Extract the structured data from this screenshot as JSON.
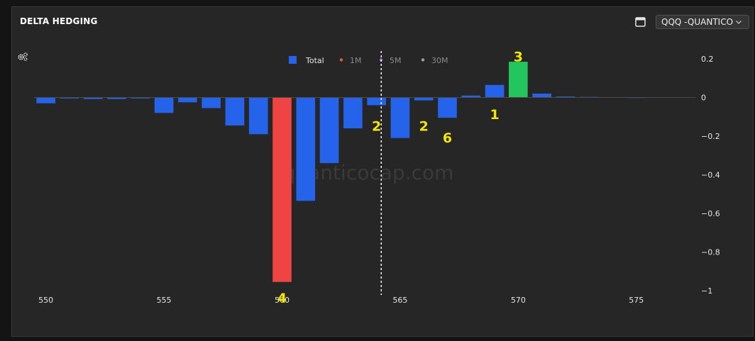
{
  "header": {
    "title": "DELTA HEDGING",
    "layout_icon": "window-layout-icon",
    "ticker_select": {
      "value": "QQQ -QUANTICO",
      "icon": "chevron-down-icon"
    },
    "settings_icon": "settings-gears-icon"
  },
  "watermark": "quanticocap.com",
  "colors": {
    "panel": "#262626",
    "bar_default": "#2563eb",
    "bar_negative_highlight": "#ef4444",
    "bar_positive_highlight": "#22c55e",
    "annotation": "#f5e600",
    "legend_1m": "#d9642b",
    "legend_5m": "#8b5cf6",
    "legend_30m": "#9ca3af"
  },
  "chart_data": {
    "type": "bar",
    "legend": [
      {
        "name": "Total",
        "active": true
      },
      {
        "name": "1M",
        "active": false
      },
      {
        "name": "5M",
        "active": false
      },
      {
        "name": "30M",
        "active": false
      }
    ],
    "series": [
      {
        "name": "Total",
        "x": [
          550,
          551,
          552,
          553,
          554,
          555,
          556,
          557,
          558,
          559,
          560,
          561,
          562,
          563,
          564,
          565,
          566,
          567,
          568,
          569,
          570,
          571,
          572,
          573,
          574,
          575
        ],
        "values": [
          -0.03,
          -0.005,
          -0.008,
          -0.008,
          -0.005,
          -0.08,
          -0.025,
          -0.055,
          -0.145,
          -0.19,
          -0.955,
          -0.535,
          -0.34,
          -0.16,
          -0.04,
          -0.21,
          -0.015,
          -0.105,
          0.01,
          0.065,
          0.185,
          0.02,
          0.005,
          0.003,
          0.002,
          0.001
        ],
        "highlight": {
          "560": "negative",
          "570": "positive"
        }
      }
    ],
    "xticks": [
      550,
      555,
      560,
      565,
      570,
      575
    ],
    "xlim": [
      549.5,
      577.5
    ],
    "ylim": [
      -1,
      0.2
    ],
    "yticks": [
      0.2,
      0,
      -0.2,
      -0.4,
      -0.6,
      -0.8,
      -1
    ],
    "ytick_labels": [
      "0.2",
      "0",
      "−0.2",
      "−0.4",
      "−0.6",
      "−0.8",
      "−1"
    ],
    "y_axis_position": "right",
    "grid": false,
    "zero_line": true,
    "marker_line_x": 564.2,
    "annotations": [
      {
        "text": "4",
        "x": 560,
        "y": -1.0
      },
      {
        "text": "2",
        "x": 564,
        "y": -0.11
      },
      {
        "text": "2",
        "x": 566,
        "y": -0.11
      },
      {
        "text": "6",
        "x": 567,
        "y": -0.17
      },
      {
        "text": "1",
        "x": 569,
        "y": -0.05
      },
      {
        "text": "3",
        "x": 570,
        "y": 0.25
      }
    ]
  }
}
